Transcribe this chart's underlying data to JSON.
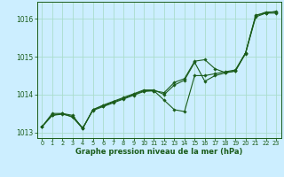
{
  "xlabel": "Graphe pression niveau de la mer (hPa)",
  "background_color": "#cceeff",
  "grid_color": "#aaddcc",
  "line_color": "#1a5c1a",
  "xlim": [
    -0.5,
    23.5
  ],
  "ylim": [
    1012.85,
    1016.45
  ],
  "yticks": [
    1013,
    1014,
    1015,
    1016
  ],
  "xticks": [
    0,
    1,
    2,
    3,
    4,
    5,
    6,
    7,
    8,
    9,
    10,
    11,
    12,
    13,
    14,
    15,
    16,
    17,
    18,
    19,
    20,
    21,
    22,
    23
  ],
  "series": [
    [
      1013.15,
      1013.5,
      1013.5,
      1013.45,
      1013.1,
      1013.6,
      1013.7,
      1013.8,
      1013.9,
      1014.0,
      1014.1,
      1014.1,
      1013.85,
      1013.6,
      1013.55,
      1014.5,
      1014.5,
      1014.55,
      1014.6,
      1014.65,
      1015.1,
      1016.1,
      1016.15,
      1016.2
    ],
    [
      1013.15,
      1013.45,
      1013.5,
      1013.4,
      1013.1,
      1013.6,
      1013.72,
      1013.82,
      1013.92,
      1014.02,
      1014.12,
      1014.12,
      1014.0,
      1014.25,
      1014.38,
      1014.85,
      1014.35,
      1014.5,
      1014.57,
      1014.62,
      1015.1,
      1016.08,
      1016.18,
      1016.18
    ],
    [
      1013.15,
      1013.45,
      1013.48,
      1013.42,
      1013.12,
      1013.58,
      1013.68,
      1013.78,
      1013.88,
      1013.98,
      1014.08,
      1014.1,
      1014.05,
      1014.32,
      1014.42,
      1014.88,
      1014.92,
      1014.68,
      1014.58,
      1014.62,
      1015.08,
      1016.05,
      1016.15,
      1016.15
    ]
  ]
}
